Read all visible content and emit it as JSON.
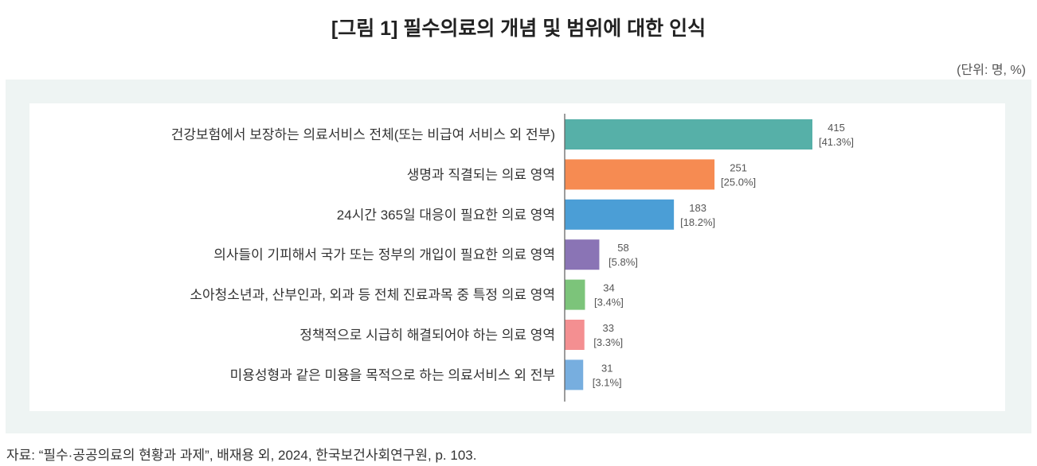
{
  "title": "[그림 1] 필수의료의 개념 및 범위에 대한 인식",
  "unit_label": "(단위: 명, %)",
  "source": "자료: “필수·공공의료의 현황과 과제”, 배재용 외, 2024, 한국보건사회연구원, p. 103.",
  "chart_data": {
    "type": "bar",
    "orientation": "horizontal",
    "grid": false,
    "legend": "none",
    "categories": [
      "건강보험에서 보장하는 의료서비스 전체(또는 비급여 서비스 외 전부)",
      "생명과 직결되는 의료 영역",
      "24시간 365일 대응이 필요한 의료 영역",
      "의사들이 기피해서 국가 또는 정부의 개입이 필요한 의료 영역",
      "소아청소년과, 산부인과, 외과 등 전체 진료과목 중 특정 의료 영역",
      "정책적으로 시급히 해결되어야 하는 의료 영역",
      "미용성형과 같은 미용을 목적으로 하는 의료서비스 외 전부"
    ],
    "values": [
      415,
      251,
      183,
      58,
      34,
      33,
      31
    ],
    "percent_labels": [
      "[41.3%]",
      "[25.0%]",
      "[18.2%]",
      "[5.8%]",
      "[3.4%]",
      "[3.3%]",
      "[3.1%]"
    ],
    "colors": [
      "#56b0a8",
      "#f68b52",
      "#4b9ed6",
      "#8a74b5",
      "#7cc47a",
      "#f48f91",
      "#77aedf"
    ]
  }
}
